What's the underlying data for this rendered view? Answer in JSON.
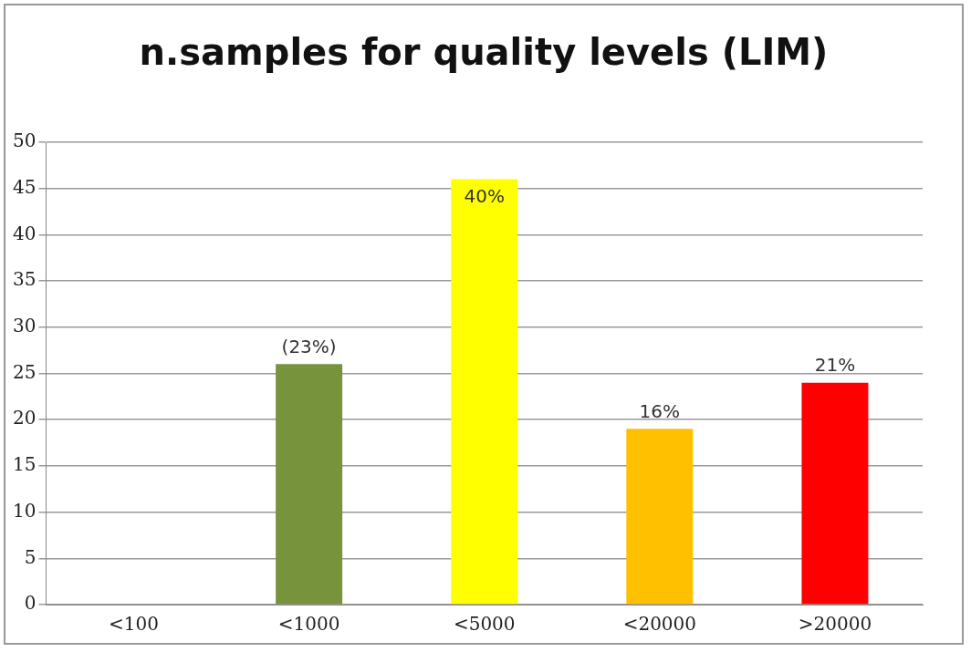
{
  "chart_data": {
    "type": "bar",
    "title": "n.samples for quality levels (LIM)",
    "categories": [
      "<100",
      "<1000",
      "<5000",
      "<20000",
      ">20000"
    ],
    "values": [
      0,
      26,
      46,
      19,
      24
    ],
    "colors": [
      "#77933c",
      "#77933c",
      "#ffff00",
      "#ffc000",
      "#ff0000"
    ],
    "annotations": [
      "(23%)",
      "40%",
      "16%",
      "21%"
    ],
    "ylim": [
      0,
      50
    ],
    "yticks": [
      0,
      5,
      10,
      15,
      20,
      25,
      30,
      35,
      40,
      45,
      50
    ],
    "grid": "y",
    "legend": false
  }
}
